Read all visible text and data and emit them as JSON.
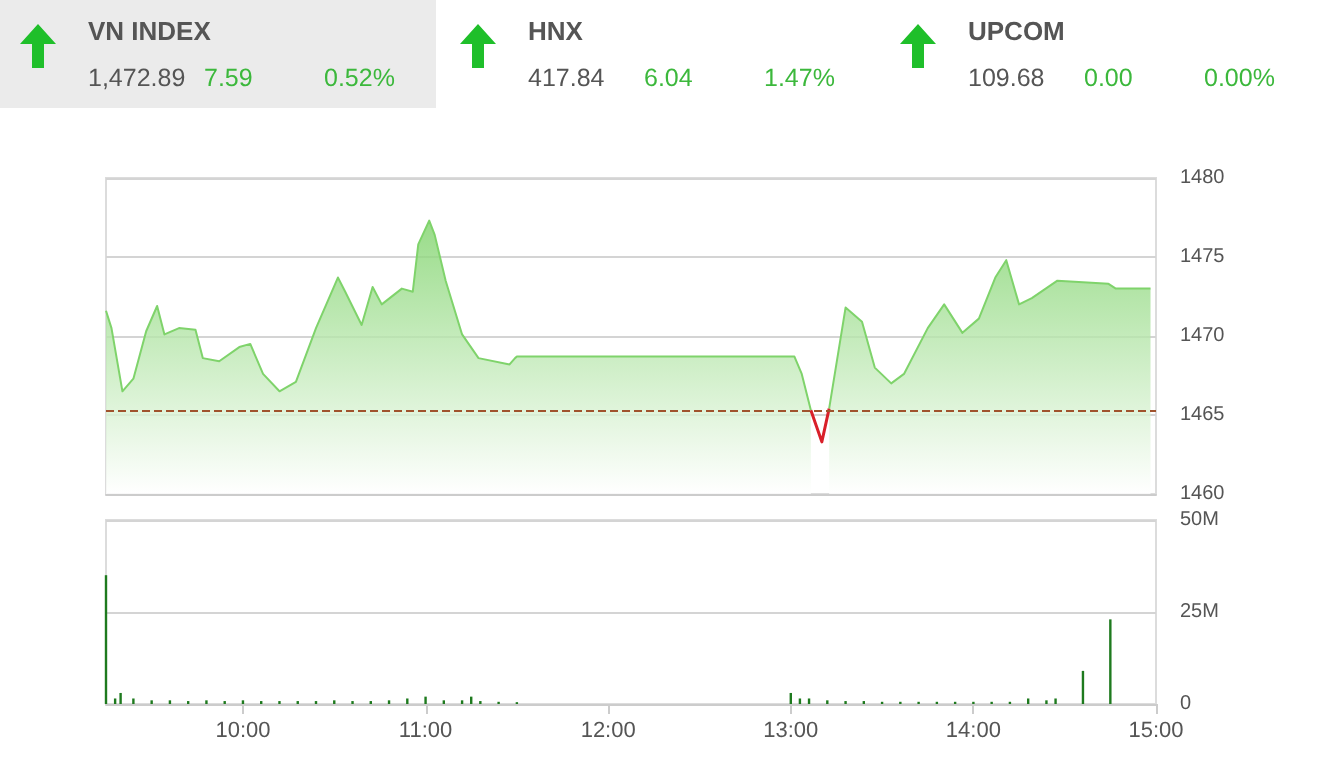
{
  "chart_data": [
    {
      "type": "other",
      "annotations": [
        "VN INDEX",
        "1,472.89",
        "7.59",
        "0.52%",
        "HNX",
        "417.84",
        "6.04",
        "1.47%",
        "UPCOM",
        "109.68",
        "0.00",
        "0.00%"
      ]
    },
    {
      "type": "area",
      "xlim": [
        9.25,
        15
      ],
      "ylim": [
        1460,
        1480
      ],
      "yticks": [
        1460,
        1465,
        1470,
        1475,
        1480
      ],
      "grid": "y",
      "tick_labels": "y",
      "ref_lines": [
        {
          "axis": "y",
          "value": 1465.3,
          "color": "#a0522d",
          "line_style": "dashed"
        }
      ],
      "series": [
        {
          "color": "#7fd36b",
          "x": [
            9.25,
            9.28,
            9.34,
            9.4,
            9.47,
            9.53,
            9.57,
            9.65,
            9.74,
            9.78,
            9.87,
            9.98,
            10.04,
            10.11,
            10.2,
            10.29,
            10.4,
            10.52,
            10.56,
            10.65,
            10.71,
            10.76,
            10.87,
            10.93,
            10.96,
            11.02,
            11.05,
            11.11,
            11.2,
            11.29,
            11.46,
            11.49,
            11.5,
            13.02,
            13.06,
            13.11,
            13.17,
            13.21,
            13.3,
            13.39,
            13.46,
            13.55,
            13.62,
            13.75,
            13.84,
            13.94,
            14.03,
            14.12,
            14.18,
            14.25,
            14.32,
            14.46,
            14.74,
            14.78,
            14.97
          ],
          "values": [
            1471.6,
            1470.5,
            1466.5,
            1467.3,
            1470.3,
            1471.9,
            1470.1,
            1470.5,
            1470.4,
            1468.6,
            1468.4,
            1469.3,
            1469.5,
            1467.6,
            1466.5,
            1467.1,
            1470.5,
            1473.7,
            1472.8,
            1470.7,
            1473.1,
            1472.0,
            1473.0,
            1472.8,
            1475.8,
            1477.3,
            1476.4,
            1473.5,
            1470.1,
            1468.6,
            1468.2,
            1468.6,
            1468.7,
            1468.7,
            1467.6,
            1465.3,
            null,
            1465.4,
            1471.8,
            1470.9,
            1468.0,
            1467.0,
            1467.6,
            1470.5,
            1472.0,
            1470.2,
            1471.1,
            1473.7,
            1474.8,
            1472.0,
            1472.4,
            1473.5,
            1473.3,
            1473.0,
            1473.0
          ]
        },
        {
          "type": "line",
          "color": "#d9202a",
          "x": [
            13.11,
            13.17,
            13.21
          ],
          "values": [
            1465.3,
            1463.3,
            1465.4
          ]
        }
      ]
    },
    {
      "type": "bar",
      "xlim": [
        9.25,
        15
      ],
      "xticks": [
        {
          "value": 10,
          "label": "10:00"
        },
        {
          "value": 11,
          "label": "11:00"
        },
        {
          "value": 12,
          "label": "12:00"
        },
        {
          "value": 13,
          "label": "13:00"
        },
        {
          "value": 14,
          "label": "14:00"
        },
        {
          "value": 15,
          "label": "15:00"
        }
      ],
      "ylim": [
        0,
        50
      ],
      "yticks": [
        0,
        {
          "value": 25,
          "label": "25M"
        },
        {
          "value": 50,
          "label": "50M"
        }
      ],
      "grid": "y",
      "series": [
        {
          "color": "#1e7a1e",
          "x": [
            9.25,
            9.3,
            9.33,
            9.4,
            9.5,
            9.6,
            9.7,
            9.8,
            9.9,
            10.0,
            10.1,
            10.2,
            10.3,
            10.4,
            10.5,
            10.6,
            10.7,
            10.8,
            10.9,
            11.0,
            11.1,
            11.2,
            11.25,
            11.3,
            11.4,
            11.5,
            13.0,
            13.05,
            13.1,
            13.2,
            13.3,
            13.4,
            13.5,
            13.6,
            13.7,
            13.8,
            13.9,
            14.0,
            14.1,
            14.2,
            14.3,
            14.4,
            14.45,
            14.6,
            14.75
          ],
          "values": [
            35,
            1.5,
            3,
            1.5,
            1,
            1,
            0.8,
            1,
            0.8,
            1,
            0.8,
            0.8,
            0.8,
            0.8,
            1,
            0.8,
            0.8,
            1,
            1.5,
            2,
            1,
            1,
            2,
            0.8,
            0.6,
            0.5,
            3,
            1.5,
            1.5,
            1,
            0.8,
            0.8,
            0.6,
            0.6,
            0.6,
            0.6,
            0.6,
            0.6,
            0.6,
            0.6,
            1.5,
            1,
            1.5,
            9,
            23
          ]
        }
      ]
    }
  ]
}
